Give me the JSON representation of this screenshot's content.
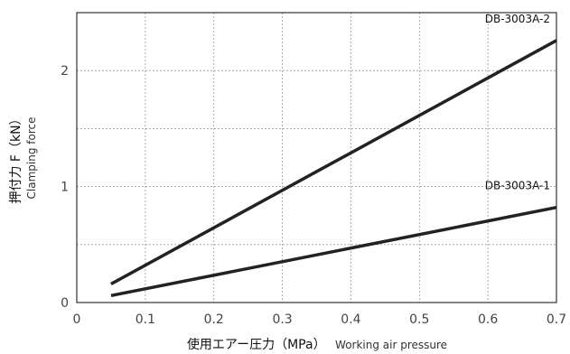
{
  "chart_data": {
    "type": "line",
    "title": "",
    "xlabel_main": "使用エアー圧力（MPa）",
    "xlabel_sub": "Working air pressure",
    "ylabel_main": "押付力 F（kN）",
    "ylabel_sub": "Clamping force",
    "xlim": [
      0,
      0.7
    ],
    "ylim": [
      0,
      2.5
    ],
    "x_ticks": [
      0,
      0.1,
      0.2,
      0.3,
      0.4,
      0.5,
      0.6,
      0.7
    ],
    "x_tick_labels": [
      "0",
      "0.1",
      "0.2",
      "0.3",
      "0.4",
      "0.5",
      "0.6",
      "0.7"
    ],
    "y_ticks": [
      0,
      1,
      2
    ],
    "y_tick_labels": [
      "0",
      "1",
      "2"
    ],
    "grid": true,
    "grid_y_values": [
      0.5,
      1,
      1.5,
      2
    ],
    "series": [
      {
        "name": "DB-3003A-2",
        "x": [
          0.05,
          0.7
        ],
        "y": [
          0.16,
          2.26
        ],
        "color": "#222222"
      },
      {
        "name": "DB-3003A-1",
        "x": [
          0.05,
          0.7
        ],
        "y": [
          0.06,
          0.82
        ],
        "color": "#222222"
      }
    ]
  }
}
